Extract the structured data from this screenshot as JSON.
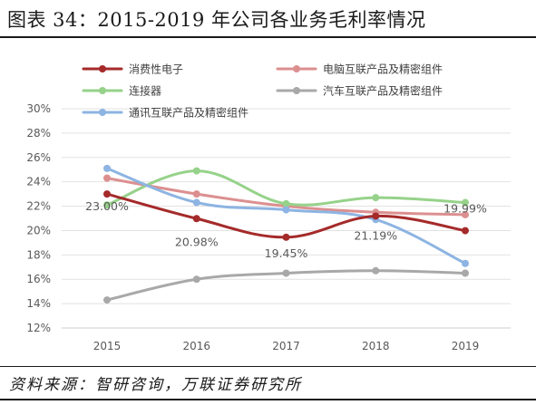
{
  "header": {
    "title": "图表 34：2015-2019 年公司各业务毛利率情况"
  },
  "footer": {
    "source": "资料来源：智研咨询，万联证券研究所"
  },
  "chart_data": {
    "type": "line",
    "title": "",
    "xlabel": "",
    "ylabel": "",
    "categories": [
      "2015",
      "2016",
      "2017",
      "2018",
      "2019"
    ],
    "ylim": [
      12,
      30
    ],
    "yticks": [
      12,
      14,
      16,
      18,
      20,
      22,
      24,
      26,
      28,
      30
    ],
    "ytick_labels": [
      "12%",
      "14%",
      "16%",
      "18%",
      "20%",
      "22%",
      "24%",
      "26%",
      "28%",
      "30%"
    ],
    "grid": true,
    "legend_position": "top",
    "series": [
      {
        "name": "消费性电子",
        "color": "#a52a2a",
        "values": [
          23.0,
          20.98,
          19.45,
          21.19,
          19.99
        ]
      },
      {
        "name": "电脑互联产品及精密组件",
        "color": "#dc8f8f",
        "values": [
          24.3,
          23.0,
          22.0,
          21.5,
          21.3
        ]
      },
      {
        "name": "连接器",
        "color": "#96d28a",
        "values": [
          22.1,
          24.9,
          22.2,
          22.7,
          22.3
        ]
      },
      {
        "name": "汽车互联产品及精密组件",
        "color": "#a8a8a8",
        "values": [
          14.3,
          16.0,
          16.5,
          16.7,
          16.5
        ]
      },
      {
        "name": "通讯互联产品及精密组件",
        "color": "#8db4e2",
        "values": [
          25.1,
          22.3,
          21.7,
          20.9,
          17.3
        ]
      }
    ],
    "data_labels": [
      {
        "series": "消费性电子",
        "category": "2015",
        "text": "23.00%"
      },
      {
        "series": "消费性电子",
        "category": "2016",
        "text": "20.98%"
      },
      {
        "series": "消费性电子",
        "category": "2017",
        "text": "19.45%"
      },
      {
        "series": "消费性电子",
        "category": "2018",
        "text": "21.19%"
      },
      {
        "series": "消费性电子",
        "category": "2019",
        "text": "19.99%"
      }
    ]
  }
}
